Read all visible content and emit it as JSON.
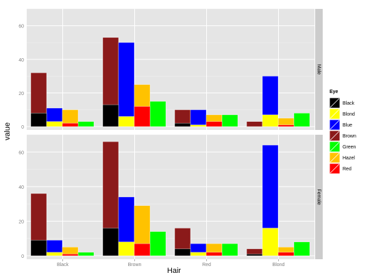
{
  "chart_data": {
    "type": "bar",
    "xlabel": "Hair",
    "ylabel": "value",
    "categories": [
      "Black",
      "Brown",
      "Red",
      "Blond"
    ],
    "ylim": [
      -2,
      70
    ],
    "yticks": [
      0,
      20,
      40,
      60
    ],
    "grid": true,
    "legend_position": "right",
    "legend_title": "Eye",
    "legend": [
      {
        "name": "Black",
        "color": "#000000"
      },
      {
        "name": "Blond",
        "color": "#ffff00"
      },
      {
        "name": "Blue",
        "color": "#0000ff"
      },
      {
        "name": "Brown",
        "color": "#8b1a1a"
      },
      {
        "name": "Green",
        "color": "#00ff00"
      },
      {
        "name": "Hazel",
        "color": "#ffc200"
      },
      {
        "name": "Red",
        "color": "#ff0000"
      }
    ],
    "facets": [
      {
        "label": "Male",
        "series": [
          {
            "name": "Black",
            "values": [
              8,
              13,
              2,
              0
            ]
          },
          {
            "name": "Blond",
            "values": [
              3,
              6,
              1,
              7
            ]
          },
          {
            "name": "Blue",
            "values": [
              11,
              50,
              10,
              30
            ]
          },
          {
            "name": "Brown",
            "values": [
              32,
              53,
              10,
              3
            ]
          },
          {
            "name": "Green",
            "values": [
              3,
              15,
              7,
              8
            ]
          },
          {
            "name": "Hazel",
            "values": [
              10,
              25,
              7,
              5
            ]
          },
          {
            "name": "Red",
            "values": [
              2,
              12,
              3,
              1
            ]
          }
        ],
        "bars": [
          {
            "eye": "Brown",
            "values": [
              32,
              53,
              10,
              3
            ]
          },
          {
            "eye": "Blue",
            "values": [
              11,
              50,
              10,
              30
            ]
          },
          {
            "eye": "Hazel",
            "values": [
              10,
              25,
              7,
              5
            ]
          },
          {
            "eye": "Green",
            "values": [
              3,
              15,
              7,
              8
            ]
          }
        ],
        "overlays": [
          {
            "eye": "Black",
            "bar": 0,
            "values": [
              8,
              13,
              2,
              0
            ]
          },
          {
            "eye": "Blond",
            "bar": 1,
            "values": [
              3,
              6,
              1,
              7
            ]
          },
          {
            "eye": "Red",
            "bar": 2,
            "values": [
              2,
              12,
              3,
              1
            ]
          }
        ]
      },
      {
        "label": "Female",
        "series": [
          {
            "name": "Black",
            "values": [
              9,
              16,
              4,
              1
            ]
          },
          {
            "name": "Blond",
            "values": [
              2,
              8,
              2,
              16
            ]
          },
          {
            "name": "Blue",
            "values": [
              9,
              34,
              7,
              64
            ]
          },
          {
            "name": "Brown",
            "values": [
              36,
              66,
              16,
              4
            ]
          },
          {
            "name": "Green",
            "values": [
              2,
              14,
              7,
              8
            ]
          },
          {
            "name": "Hazel",
            "values": [
              5,
              29,
              7,
              5
            ]
          },
          {
            "name": "Red",
            "values": [
              1,
              7,
              2,
              2
            ]
          }
        ],
        "bars": [
          {
            "eye": "Brown",
            "values": [
              36,
              66,
              16,
              4
            ]
          },
          {
            "eye": "Blue",
            "values": [
              9,
              34,
              7,
              64
            ]
          },
          {
            "eye": "Hazel",
            "values": [
              5,
              29,
              7,
              5
            ]
          },
          {
            "eye": "Green",
            "values": [
              2,
              14,
              7,
              8
            ]
          }
        ],
        "overlays": [
          {
            "eye": "Black",
            "bar": 0,
            "values": [
              9,
              16,
              4,
              1
            ]
          },
          {
            "eye": "Blond",
            "bar": 1,
            "values": [
              2,
              8,
              2,
              16
            ]
          },
          {
            "eye": "Red",
            "bar": 2,
            "values": [
              1,
              7,
              2,
              2
            ]
          }
        ]
      }
    ]
  }
}
